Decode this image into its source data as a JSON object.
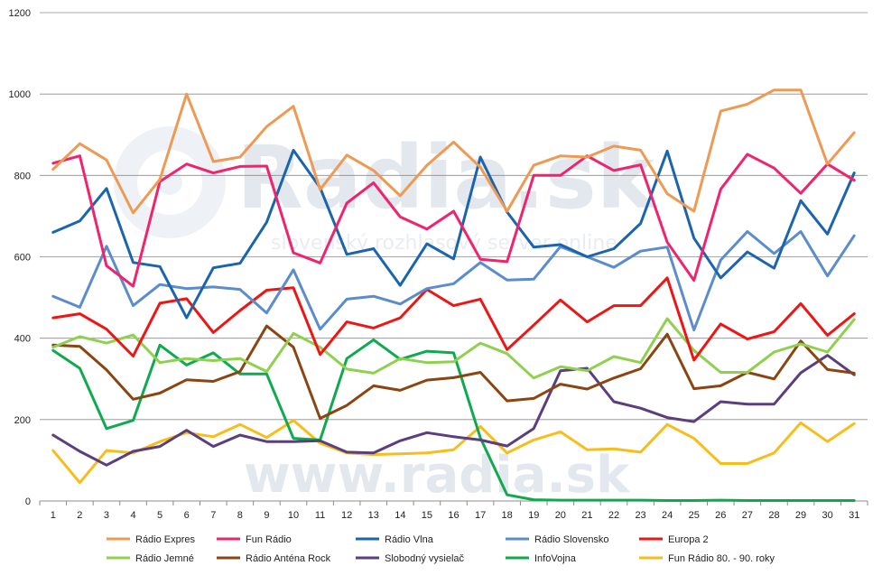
{
  "chart_data": {
    "type": "line",
    "title": "",
    "xlabel": "",
    "ylabel": "",
    "x": [
      1,
      2,
      3,
      4,
      5,
      6,
      7,
      8,
      9,
      10,
      11,
      12,
      13,
      14,
      15,
      16,
      17,
      18,
      19,
      20,
      21,
      22,
      23,
      24,
      25,
      26,
      27,
      28,
      29,
      30,
      31
    ],
    "ylim": [
      0,
      1200
    ],
    "yticks": [
      0,
      200,
      400,
      600,
      800,
      1000,
      1200
    ],
    "grid": "horizontal",
    "legend_position": "bottom",
    "watermark": {
      "logo": "Radia.sk",
      "tagline": "slovenský rozhlasový server online",
      "footer": "www.radia.sk"
    },
    "series": [
      {
        "name": "Rádio Expres",
        "color": "#ef9a52",
        "values": [
          815,
          878,
          838,
          708,
          790,
          1000,
          834,
          845,
          920,
          970,
          765,
          850,
          812,
          750,
          825,
          882,
          820,
          712,
          825,
          848,
          845,
          872,
          862,
          755,
          712,
          958,
          975,
          1010,
          1010,
          828,
          905
        ]
      },
      {
        "name": "Fun Rádio",
        "color": "#f0236f",
        "values": [
          830,
          848,
          578,
          528,
          785,
          828,
          806,
          822,
          823,
          610,
          585,
          732,
          782,
          698,
          668,
          712,
          594,
          588,
          800,
          800,
          848,
          812,
          826,
          636,
          542,
          766,
          852,
          818,
          756,
          828,
          788
        ]
      },
      {
        "name": "Rádio Vlna",
        "color": "#1a65ad",
        "values": [
          660,
          688,
          768,
          586,
          576,
          450,
          573,
          584,
          685,
          862,
          770,
          606,
          620,
          530,
          632,
          595,
          845,
          710,
          624,
          630,
          600,
          620,
          682,
          860,
          646,
          548,
          612,
          572,
          738,
          656,
          806
        ]
      },
      {
        "name": "Rádio Slovensko",
        "color": "#5b8ccb",
        "values": [
          503,
          476,
          626,
          480,
          532,
          522,
          526,
          520,
          462,
          568,
          422,
          496,
          503,
          484,
          522,
          534,
          586,
          543,
          545,
          625,
          600,
          574,
          614,
          624,
          420,
          592,
          662,
          608,
          662,
          553,
          652
        ]
      },
      {
        "name": "Europa 2",
        "color": "#ee1515",
        "values": [
          450,
          460,
          422,
          356,
          486,
          497,
          414,
          468,
          518,
          524,
          360,
          440,
          425,
          450,
          520,
          480,
          496,
          372,
          432,
          494,
          440,
          480,
          480,
          548,
          346,
          435,
          398,
          416,
          485,
          407,
          460
        ]
      },
      {
        "name": "Rádio Jemné",
        "color": "#8fd14f",
        "values": [
          378,
          404,
          388,
          408,
          340,
          350,
          345,
          350,
          318,
          412,
          378,
          324,
          314,
          350,
          340,
          342,
          388,
          362,
          302,
          330,
          320,
          355,
          340,
          448,
          370,
          316,
          316,
          366,
          386,
          366,
          446
        ]
      },
      {
        "name": "Rádio Anténa Rock",
        "color": "#8b4513",
        "values": [
          383,
          380,
          322,
          250,
          265,
          298,
          294,
          318,
          430,
          378,
          203,
          235,
          283,
          272,
          297,
          303,
          316,
          246,
          252,
          287,
          275,
          302,
          325,
          410,
          276,
          283,
          316,
          300,
          393,
          323,
          314
        ]
      },
      {
        "name": "Slobodný vysielač",
        "color": "#5b3e7e",
        "values": [
          162,
          122,
          88,
          122,
          134,
          174,
          134,
          162,
          146,
          146,
          148,
          120,
          118,
          148,
          168,
          158,
          150,
          135,
          178,
          320,
          326,
          244,
          228,
          205,
          195,
          244,
          238,
          238,
          315,
          358,
          310
        ]
      },
      {
        "name": "InfoVojna",
        "color": "#0faa4e",
        "values": [
          370,
          326,
          178,
          198,
          383,
          334,
          364,
          312,
          312,
          154,
          150,
          350,
          396,
          348,
          368,
          364,
          155,
          15,
          3,
          2,
          2,
          2,
          2,
          1,
          1,
          2,
          1,
          1,
          1,
          1,
          1
        ]
      },
      {
        "name": "Fun Rádio 80. - 90. roky",
        "color": "#f7be1b",
        "values": [
          124,
          45,
          124,
          118,
          146,
          168,
          158,
          188,
          156,
          198,
          142,
          118,
          114,
          116,
          118,
          126,
          183,
          118,
          150,
          170,
          126,
          128,
          120,
          188,
          154,
          92,
          92,
          118,
          192,
          146,
          190
        ]
      }
    ]
  }
}
